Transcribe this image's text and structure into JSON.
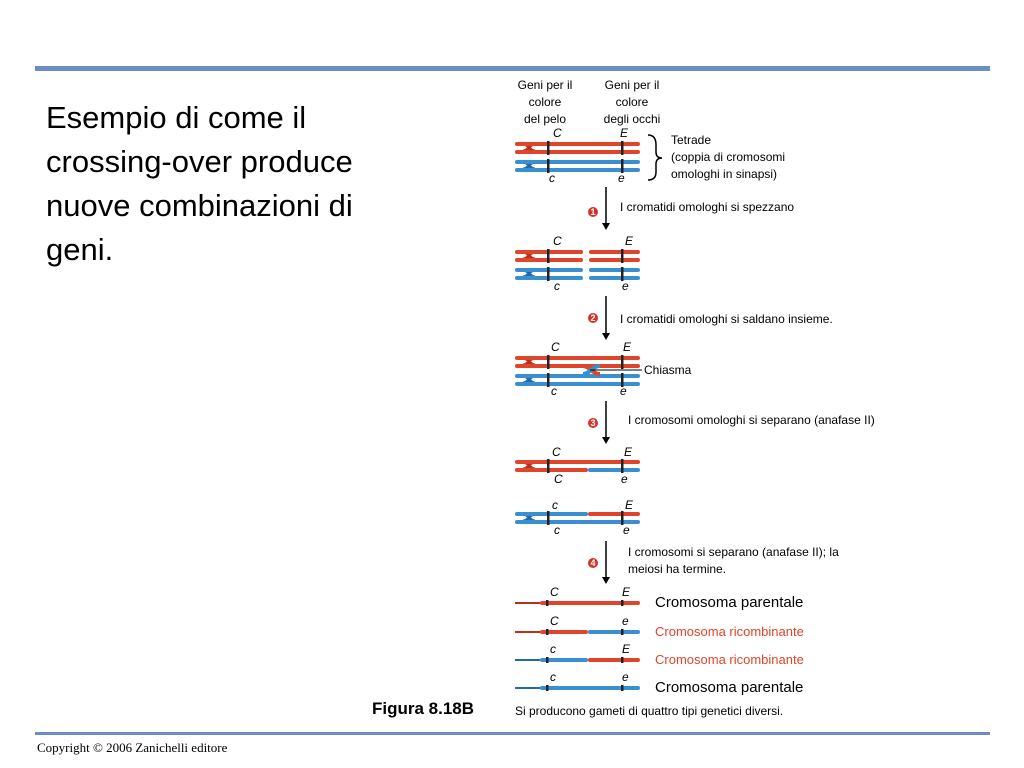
{
  "title": "Esempio di come il crossing-over produce nuove combinazioni di geni.",
  "figure_label": "Figura 8.18B",
  "copyright": "Copyright © 2006 Zanichelli editore",
  "colors": {
    "red": "#e0452b",
    "blue": "#3a8fd0",
    "accent_bar": "#6b8cc7"
  },
  "header": {
    "col1": [
      "Geni per il",
      "colore",
      "del pelo"
    ],
    "col2": [
      "Geni per il",
      "colore",
      "degli occhi"
    ]
  },
  "tetrad": [
    "Tetrade",
    "(coppia di cromosomi",
    "omologhi in sinapsi)"
  ],
  "steps": [
    {
      "num": "1",
      "text": [
        "I cromatidi omologhi si spezzano"
      ]
    },
    {
      "num": "2",
      "text": [
        "I cromatidi omologhi si saldano insieme."
      ]
    },
    {
      "num": "3",
      "text": [
        "I cromosomi omologhi si separano (anafase II)"
      ]
    },
    {
      "num": "4",
      "text": [
        "I cromosomi si separano (anafase II); la",
        "meiosi ha termine."
      ]
    }
  ],
  "chiasma": "Chiasma",
  "alleles": {
    "C": "C",
    "c": "c",
    "E": "E",
    "e": "e"
  },
  "results": [
    {
      "text": "Cromosoma parentale",
      "type": "parental"
    },
    {
      "text": "Cromosoma ricombinante",
      "type": "recombinant"
    },
    {
      "text": "Cromosoma ricombinante",
      "type": "recombinant"
    },
    {
      "text": "Cromosoma parentale",
      "type": "parental"
    }
  ],
  "footer_note": "Si producono gameti di quattro tipi genetici diversi."
}
